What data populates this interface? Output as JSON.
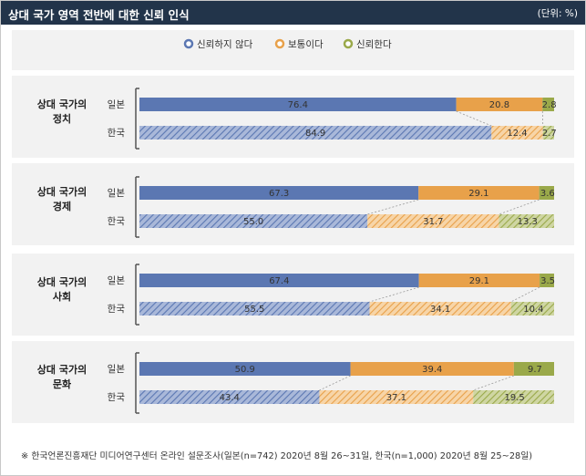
{
  "header": {
    "title": "상대 국가 영역 전반에 대한 신뢰 인식",
    "unit": "(단위: %)"
  },
  "legend": {
    "items": [
      {
        "label": "신뢰하지 않다",
        "color": "#5b77b2"
      },
      {
        "label": "보통이다",
        "color": "#e8a14a"
      },
      {
        "label": "신뢰한다",
        "color": "#9aa94a"
      }
    ]
  },
  "footnote": "※ 한국언론진흥재단 미디어연구센터 온라인 설문조사(일본(n=742) 2020년 8월 26~31일, 한국(n=1,000) 2020년 8월 25~28일)",
  "chart_data": {
    "type": "bar",
    "stacked": true,
    "orientation": "horizontal",
    "xlim": [
      0,
      100
    ],
    "series_labels": [
      "신뢰하지 않다",
      "보통이다",
      "신뢰한다"
    ],
    "colors": [
      "#5b77b2",
      "#e8a14a",
      "#9aa94a"
    ],
    "groups": [
      {
        "label_lines": [
          "상대 국가의",
          "정치"
        ],
        "rows": [
          {
            "label": "일본",
            "values": [
              76.4,
              20.8,
              2.8
            ]
          },
          {
            "label": "한국",
            "values": [
              84.9,
              12.4,
              2.7
            ]
          }
        ]
      },
      {
        "label_lines": [
          "상대 국가의",
          "경제"
        ],
        "rows": [
          {
            "label": "일본",
            "values": [
              67.3,
              29.1,
              3.6
            ]
          },
          {
            "label": "한국",
            "values": [
              55.0,
              31.7,
              13.3
            ]
          }
        ]
      },
      {
        "label_lines": [
          "상대 국가의",
          "사회"
        ],
        "rows": [
          {
            "label": "일본",
            "values": [
              67.4,
              29.1,
              3.5
            ]
          },
          {
            "label": "한국",
            "values": [
              55.5,
              34.1,
              10.4
            ]
          }
        ]
      },
      {
        "label_lines": [
          "상대 국가의",
          "문화"
        ],
        "rows": [
          {
            "label": "일본",
            "values": [
              50.9,
              39.4,
              9.7
            ]
          },
          {
            "label": "한국",
            "values": [
              43.4,
              37.1,
              19.5
            ]
          }
        ]
      }
    ]
  }
}
